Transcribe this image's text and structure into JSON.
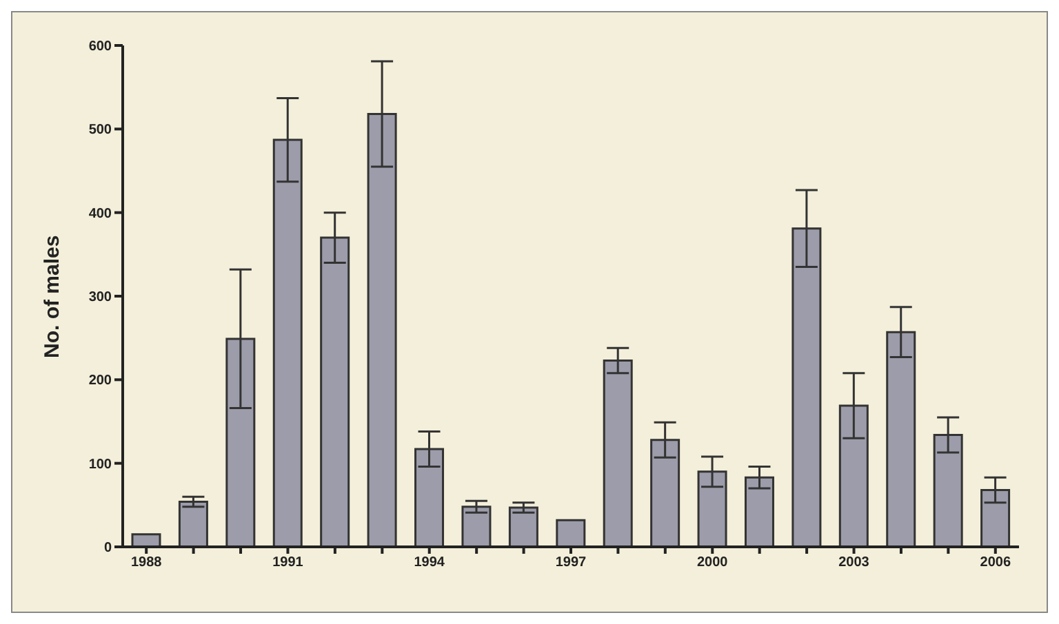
{
  "chart_data": {
    "type": "bar",
    "ylabel": "No. of males",
    "categories": [
      "1988",
      null,
      null,
      "1991",
      null,
      null,
      "1994",
      null,
      null,
      "1997",
      null,
      null,
      "2000",
      null,
      null,
      "2003",
      null,
      null,
      "2006"
    ],
    "values": [
      15,
      54,
      249,
      487,
      370,
      518,
      117,
      48,
      47,
      32,
      223,
      128,
      90,
      83,
      381,
      169,
      257,
      134,
      68
    ],
    "errors": [
      null,
      6,
      83,
      50,
      30,
      63,
      21,
      7,
      6,
      null,
      15,
      21,
      18,
      13,
      46,
      39,
      30,
      21,
      15
    ],
    "color": "#9c9caa",
    "ylim": [
      0,
      600
    ],
    "yticks": [
      0,
      100,
      200,
      300,
      400,
      500,
      600
    ],
    "grid": false,
    "legend": false
  }
}
